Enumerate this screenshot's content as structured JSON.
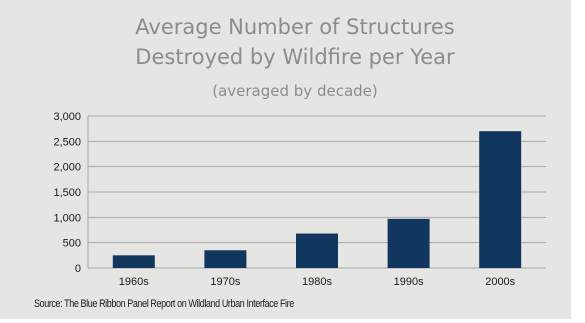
{
  "chart_data": {
    "type": "bar",
    "title_line1": "Average Number of Structures",
    "title_line2": "Destroyed by Wildfire per Year",
    "subtitle": "(averaged by decade)",
    "categories": [
      "1960s",
      "1970s",
      "1980s",
      "1990s",
      "2000s"
    ],
    "values": [
      250,
      350,
      680,
      970,
      2700
    ],
    "ylim": [
      0,
      3000
    ],
    "yticks": [
      0,
      500,
      1000,
      1500,
      2000,
      2500,
      3000
    ],
    "ytick_labels": [
      "0",
      "500",
      "1,000",
      "1,500",
      "2,000",
      "2,500",
      "3,000"
    ],
    "grid": true,
    "bar_color": "#11375e",
    "xlabel": "",
    "ylabel": ""
  },
  "source": "Source: The Blue Ribbon Panel Report on Wildland Urban Interface Fire"
}
